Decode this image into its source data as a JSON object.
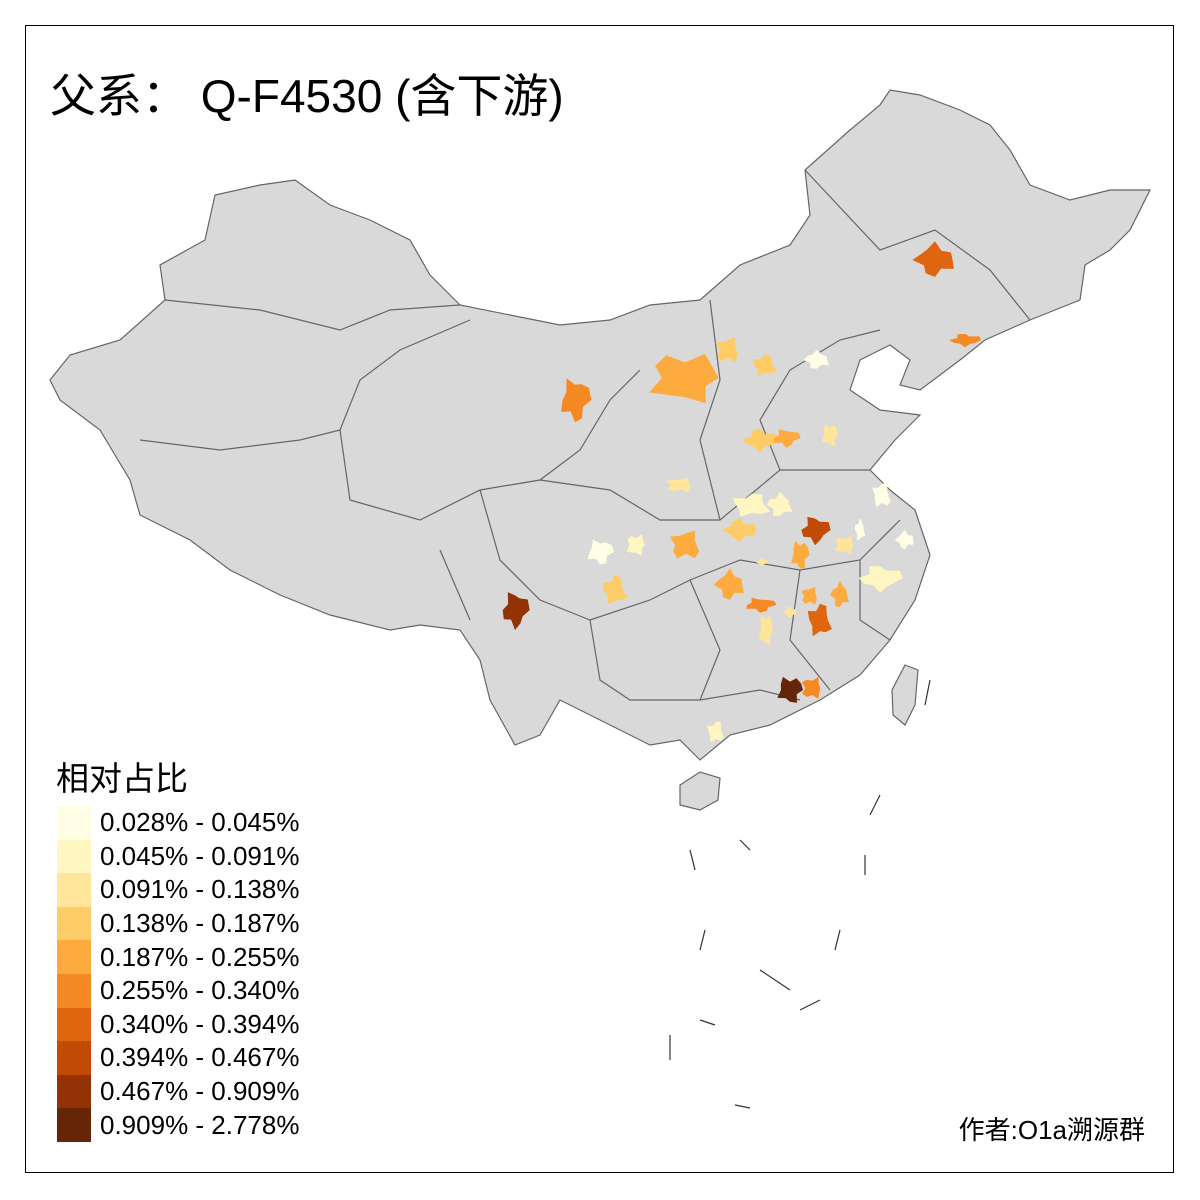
{
  "title": "父系： Q-F4530 (含下游)",
  "legend": {
    "title": "相对占比",
    "classes": [
      {
        "label": "0.028% - 0.045%",
        "color": "#FFFDE4"
      },
      {
        "label": "0.045% - 0.091%",
        "color": "#FFF6C2"
      },
      {
        "label": "0.091% - 0.138%",
        "color": "#FEE59A"
      },
      {
        "label": "0.138% - 0.187%",
        "color": "#FECC66"
      },
      {
        "label": "0.187% - 0.255%",
        "color": "#FDAB3F"
      },
      {
        "label": "0.255% - 0.340%",
        "color": "#F58A24"
      },
      {
        "label": "0.340% - 0.394%",
        "color": "#E0650F"
      },
      {
        "label": "0.394% - 0.467%",
        "color": "#C14A04"
      },
      {
        "label": "0.467% - 0.909%",
        "color": "#933204"
      },
      {
        "label": "0.909% - 2.778%",
        "color": "#662506"
      }
    ]
  },
  "map": {
    "base_color": "#D9D9D9",
    "border_color": "#666666",
    "region_classes": [
      6,
      5,
      5,
      4,
      3,
      3,
      0,
      3,
      4,
      2,
      2,
      1,
      1,
      3,
      7,
      4,
      2,
      0,
      0,
      0,
      1,
      0,
      1,
      4,
      3,
      4,
      2,
      5,
      2,
      4,
      6,
      4,
      2,
      8,
      9,
      5,
      1,
      2
    ]
  },
  "credit": "作者:O1a溯源群"
}
